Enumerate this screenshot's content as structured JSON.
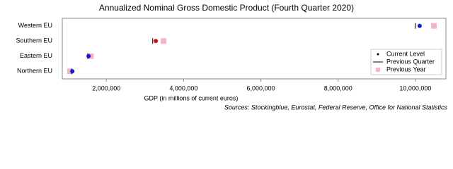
{
  "chart_data": {
    "type": "dot",
    "title": "Annualized Nominal Gross Domestic Product (Fourth Quarter 2020)",
    "x_label": "GDP (in millions of current euros)",
    "source": "Sources: Stockingblue, Eurostat, Federal Reserve, Office for National Statistics",
    "categories": [
      "Western EU",
      "Southern EU",
      "Eastern EU",
      "Northern EU"
    ],
    "series": [
      {
        "name": "Current Level",
        "marker": "dot",
        "color": "#000000",
        "colors": [
          "#0a1fd1",
          "#d0101a",
          "#0a1fd1",
          "#0a1fd1"
        ],
        "values": [
          10110000,
          3280000,
          1540000,
          1120000
        ]
      },
      {
        "name": "Previous Quarter",
        "marker": "line",
        "color": "#000000",
        "values": [
          10000000,
          3200000,
          1520000,
          1100000
        ]
      },
      {
        "name": "Previous Year",
        "marker": "square",
        "color": "#f4b6c6",
        "values": [
          10480000,
          3480000,
          1600000,
          1060000
        ]
      }
    ],
    "xlim": [
      860000,
      10790000
    ],
    "xticks": [
      {
        "value": 2000000,
        "label": "2,000,000"
      },
      {
        "value": 4000000,
        "label": "4,000,000"
      },
      {
        "value": 6000000,
        "label": "6,000,000"
      },
      {
        "value": 8000000,
        "label": "8,000,000"
      },
      {
        "value": 10000000,
        "label": "10,000,000"
      }
    ],
    "legend": "lower-right"
  }
}
